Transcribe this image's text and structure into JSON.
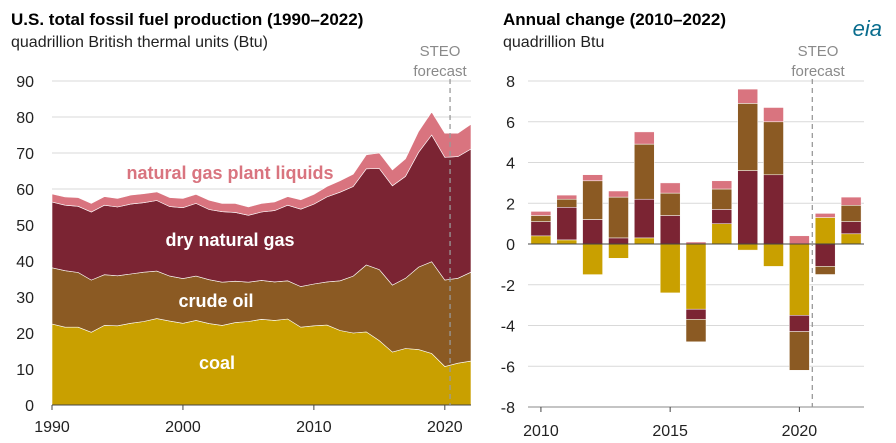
{
  "logo": "eia",
  "left": {
    "title": "U.S. total fossil fuel production (1990–2022)",
    "subtitle": "quadrillion British thermal units (Btu)",
    "steo_label_1": "STEO",
    "steo_label_2": "forecast"
  },
  "right": {
    "title": "Annual change (2010–2022)",
    "subtitle": "quadrillion Btu",
    "steo_label_1": "STEO",
    "steo_label_2": "forecast"
  },
  "colors": {
    "coal": "#c9a000",
    "crude_oil": "#8b5a23",
    "dry_natural_gas": "#7b2433",
    "ngpl": "#d9747f",
    "gridline": "#d9d9d9",
    "forecast_line": "#999999"
  },
  "chart_data": [
    {
      "type": "area",
      "stacked": true,
      "x": [
        1990,
        1991,
        1992,
        1993,
        1994,
        1995,
        1996,
        1997,
        1998,
        1999,
        2000,
        2001,
        2002,
        2003,
        2004,
        2005,
        2006,
        2007,
        2008,
        2009,
        2010,
        2011,
        2012,
        2013,
        2014,
        2015,
        2016,
        2017,
        2018,
        2019,
        2020,
        2021,
        2022
      ],
      "series": [
        {
          "name": "coal",
          "values": [
            22.5,
            21.6,
            21.6,
            20.2,
            22.1,
            22.0,
            22.7,
            23.2,
            24.0,
            23.3,
            22.7,
            23.5,
            22.6,
            22.1,
            22.9,
            23.2,
            23.8,
            23.5,
            23.9,
            21.6,
            22.0,
            22.2,
            20.7,
            20.0,
            20.3,
            17.9,
            14.7,
            15.7,
            15.4,
            14.3,
            10.7,
            11.6,
            12.2
          ]
        },
        {
          "name": "crude oil",
          "values": [
            15.6,
            15.7,
            15.2,
            14.5,
            14.1,
            13.9,
            13.7,
            13.7,
            13.2,
            12.5,
            12.4,
            12.3,
            12.2,
            12.0,
            11.5,
            10.9,
            10.8,
            10.7,
            10.6,
            11.3,
            11.6,
            12.0,
            13.8,
            15.8,
            18.6,
            19.7,
            18.6,
            19.5,
            22.9,
            25.5,
            24.0,
            23.6,
            24.7
          ]
        },
        {
          "name": "dry natural gas",
          "values": [
            18.3,
            18.2,
            18.4,
            18.9,
            19.3,
            19.1,
            19.4,
            19.3,
            19.6,
            19.3,
            19.7,
            20.2,
            19.5,
            19.6,
            19.1,
            18.6,
            19.0,
            19.8,
            21.0,
            21.5,
            22.2,
            23.6,
            24.6,
            24.9,
            26.7,
            28.1,
            27.6,
            28.3,
            31.9,
            35.2,
            34.1,
            33.8,
            34.2
          ]
        },
        {
          "name": "natural gas plant liquids",
          "values": [
            2.2,
            2.3,
            2.4,
            2.4,
            2.4,
            2.4,
            2.5,
            2.5,
            2.4,
            2.5,
            2.6,
            2.5,
            2.6,
            2.3,
            2.5,
            2.3,
            2.4,
            2.4,
            2.4,
            2.6,
            2.7,
            2.9,
            3.2,
            3.4,
            3.9,
            4.3,
            4.4,
            4.9,
            5.8,
            6.4,
            6.7,
            6.5,
            6.9
          ]
        }
      ],
      "xlim": [
        1990,
        2022
      ],
      "ylim": [
        0,
        90
      ],
      "yticks": [
        0,
        10,
        20,
        30,
        40,
        50,
        60,
        70,
        80,
        90
      ],
      "xticks": [
        1990,
        2000,
        2010,
        2020
      ],
      "forecast_start": 2020.4,
      "grid": true,
      "annotations": [
        "natural gas plant liquids",
        "dry natural gas",
        "crude oil",
        "coal"
      ]
    },
    {
      "type": "bar",
      "stacked": true,
      "categories": [
        2010,
        2011,
        2012,
        2013,
        2014,
        2015,
        2016,
        2017,
        2018,
        2019,
        2020,
        2021,
        2022
      ],
      "series": [
        {
          "name": "coal",
          "values": [
            0.4,
            0.2,
            -1.5,
            -0.7,
            0.3,
            -2.4,
            -3.2,
            1.0,
            -0.3,
            -1.1,
            -3.5,
            1.3,
            0.5
          ]
        },
        {
          "name": "dry natural gas",
          "values": [
            0.7,
            1.6,
            1.2,
            0.3,
            1.9,
            1.4,
            -0.5,
            0.7,
            3.6,
            3.4,
            -0.8,
            -1.1,
            0.6
          ]
        },
        {
          "name": "crude oil",
          "values": [
            0.3,
            0.4,
            1.9,
            2.0,
            2.7,
            1.1,
            -1.1,
            1.0,
            3.3,
            2.6,
            -1.9,
            -0.4,
            0.8
          ]
        },
        {
          "name": "natural gas plant liquids",
          "values": [
            0.2,
            0.2,
            0.3,
            0.3,
            0.6,
            0.5,
            0.1,
            0.4,
            0.7,
            0.7,
            0.4,
            0.2,
            0.4
          ]
        }
      ],
      "ylim": [
        -8,
        8
      ],
      "yticks": [
        -8,
        -6,
        -4,
        -2,
        0,
        2,
        4,
        6,
        8
      ],
      "xticks": [
        2010,
        2015,
        2020
      ],
      "forecast_start": 2020.5,
      "grid": true
    }
  ]
}
